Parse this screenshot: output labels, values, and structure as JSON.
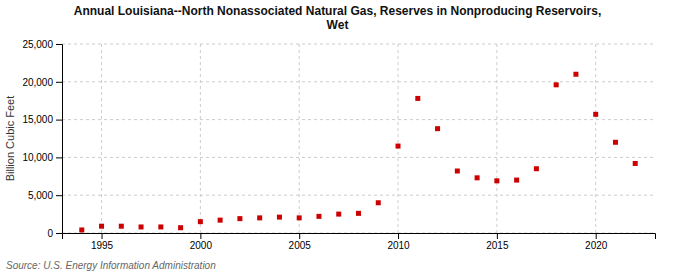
{
  "chart_data": {
    "type": "scatter",
    "title": "Annual Louisiana--North Nonassociated Natural Gas, Reserves in Nonproducing Reservoirs,\nWet",
    "y_label": "Billion Cubic Feet",
    "source": "Source: U.S. Energy Information Administration",
    "color": "#cc0000",
    "marker": "square",
    "x": [
      1994,
      1995,
      1996,
      1997,
      1998,
      1999,
      2000,
      2001,
      2002,
      2003,
      2004,
      2005,
      2006,
      2007,
      2008,
      2009,
      2010,
      2011,
      2012,
      2013,
      2014,
      2015,
      2016,
      2017,
      2018,
      2019,
      2020,
      2021,
      2022
    ],
    "values": [
      400,
      900,
      900,
      800,
      800,
      700,
      1500,
      1700,
      1900,
      2000,
      2100,
      2000,
      2200,
      2500,
      2600,
      4000,
      11500,
      17800,
      13800,
      8200,
      7300,
      6900,
      7000,
      8500,
      19600,
      21000,
      15700,
      12000,
      9200
    ],
    "xlim": [
      1993,
      2023
    ],
    "xticks": [
      1995,
      2000,
      2005,
      2010,
      2015,
      2020
    ],
    "ylim": [
      0,
      25000
    ],
    "yticks": [
      0,
      {
        "value": 5000,
        "label": "5,000"
      },
      {
        "value": 10000,
        "label": "10,000"
      },
      {
        "value": 15000,
        "label": "15,000"
      },
      {
        "value": 20000,
        "label": "20,000"
      },
      {
        "value": 25000,
        "label": "25,000"
      }
    ],
    "grid": true
  }
}
